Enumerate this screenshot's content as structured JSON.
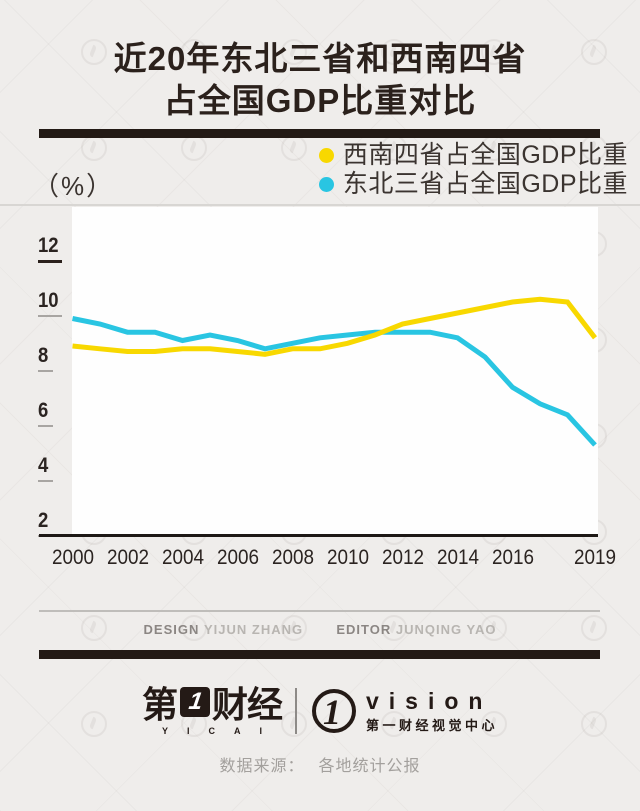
{
  "title": {
    "line1": "近20年东北三省和西南四省",
    "line2": "占全国GDP比重对比"
  },
  "unit_label": "（%）",
  "legend": [
    {
      "label": "西南四省占全国GDP比重",
      "color": "#f8d800"
    },
    {
      "label": "东北三省占全国GDP比重",
      "color": "#29c5e2"
    }
  ],
  "chart_data": {
    "type": "line",
    "title": "近20年东北三省和西南四省占全国GDP比重对比",
    "ylabel": "%",
    "x": [
      2000,
      2001,
      2002,
      2003,
      2004,
      2005,
      2006,
      2007,
      2008,
      2009,
      2010,
      2011,
      2012,
      2013,
      2014,
      2015,
      2016,
      2017,
      2018,
      2019
    ],
    "x_tick_labels": [
      "2000",
      "2002",
      "2004",
      "2006",
      "2008",
      "2010",
      "2012",
      "2014",
      "2016",
      "2019"
    ],
    "y_ticks": [
      12,
      10,
      8,
      6,
      4,
      2
    ],
    "ylim": [
      2,
      12
    ],
    "grid": false,
    "legend_position": "top-right",
    "series": [
      {
        "key": "southwest",
        "name": "西南四省占全国GDP比重",
        "color": "#f8d800",
        "values": [
          8.4,
          8.3,
          8.2,
          8.2,
          8.3,
          8.3,
          8.2,
          8.1,
          8.3,
          8.3,
          8.5,
          8.8,
          9.2,
          9.4,
          9.6,
          9.8,
          10.0,
          10.1,
          10.0,
          8.7
        ]
      },
      {
        "key": "northeast",
        "name": "东北三省占全国GDP比重",
        "color": "#29c5e2",
        "values": [
          9.4,
          9.2,
          8.9,
          8.9,
          8.6,
          8.8,
          8.6,
          8.3,
          8.5,
          8.7,
          8.8,
          8.9,
          8.9,
          8.9,
          8.7,
          8.0,
          6.9,
          6.3,
          5.9,
          4.8
        ]
      }
    ]
  },
  "credits": {
    "design_label": "DESIGN",
    "design_name": "YIJUN ZHANG",
    "editor_label": "EDITOR",
    "editor_name": "JUNQING YAO"
  },
  "branding": {
    "cn_prefix": "第",
    "cn_suffix": "财经",
    "one_glyph": "1",
    "en": "YICAI",
    "vision_en": "vision",
    "vision_cn": "第一财经视觉中心"
  },
  "source": {
    "label": "数据来源：",
    "value": "各地统计公报"
  }
}
